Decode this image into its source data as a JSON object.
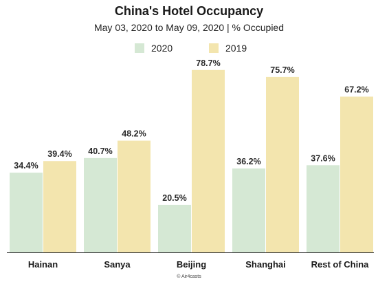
{
  "chart_data": {
    "type": "bar",
    "title": "China's Hotel Occupancy",
    "subtitle": "May 03, 2020 to May 09, 2020   |   % Occupied",
    "categories": [
      "Hainan",
      "Sanya",
      "Beijing",
      "Shanghai",
      "Rest of China"
    ],
    "series": [
      {
        "name": "2020",
        "values": [
          34.4,
          40.7,
          20.5,
          36.2,
          37.6
        ],
        "labels": [
          "34.4%",
          "40.7%",
          "20.5%",
          "36.2%",
          "37.6%"
        ],
        "color": "#d5e8d4"
      },
      {
        "name": "2019",
        "values": [
          39.4,
          48.2,
          78.7,
          75.7,
          67.2
        ],
        "labels": [
          "39.4%",
          "48.2%",
          "78.7%",
          "75.7%",
          "67.2%"
        ],
        "color": "#f3e5ae"
      }
    ],
    "ylim": [
      0,
      100
    ],
    "grid": false,
    "legend_position": "top-center",
    "credit": "© Air4casts"
  }
}
